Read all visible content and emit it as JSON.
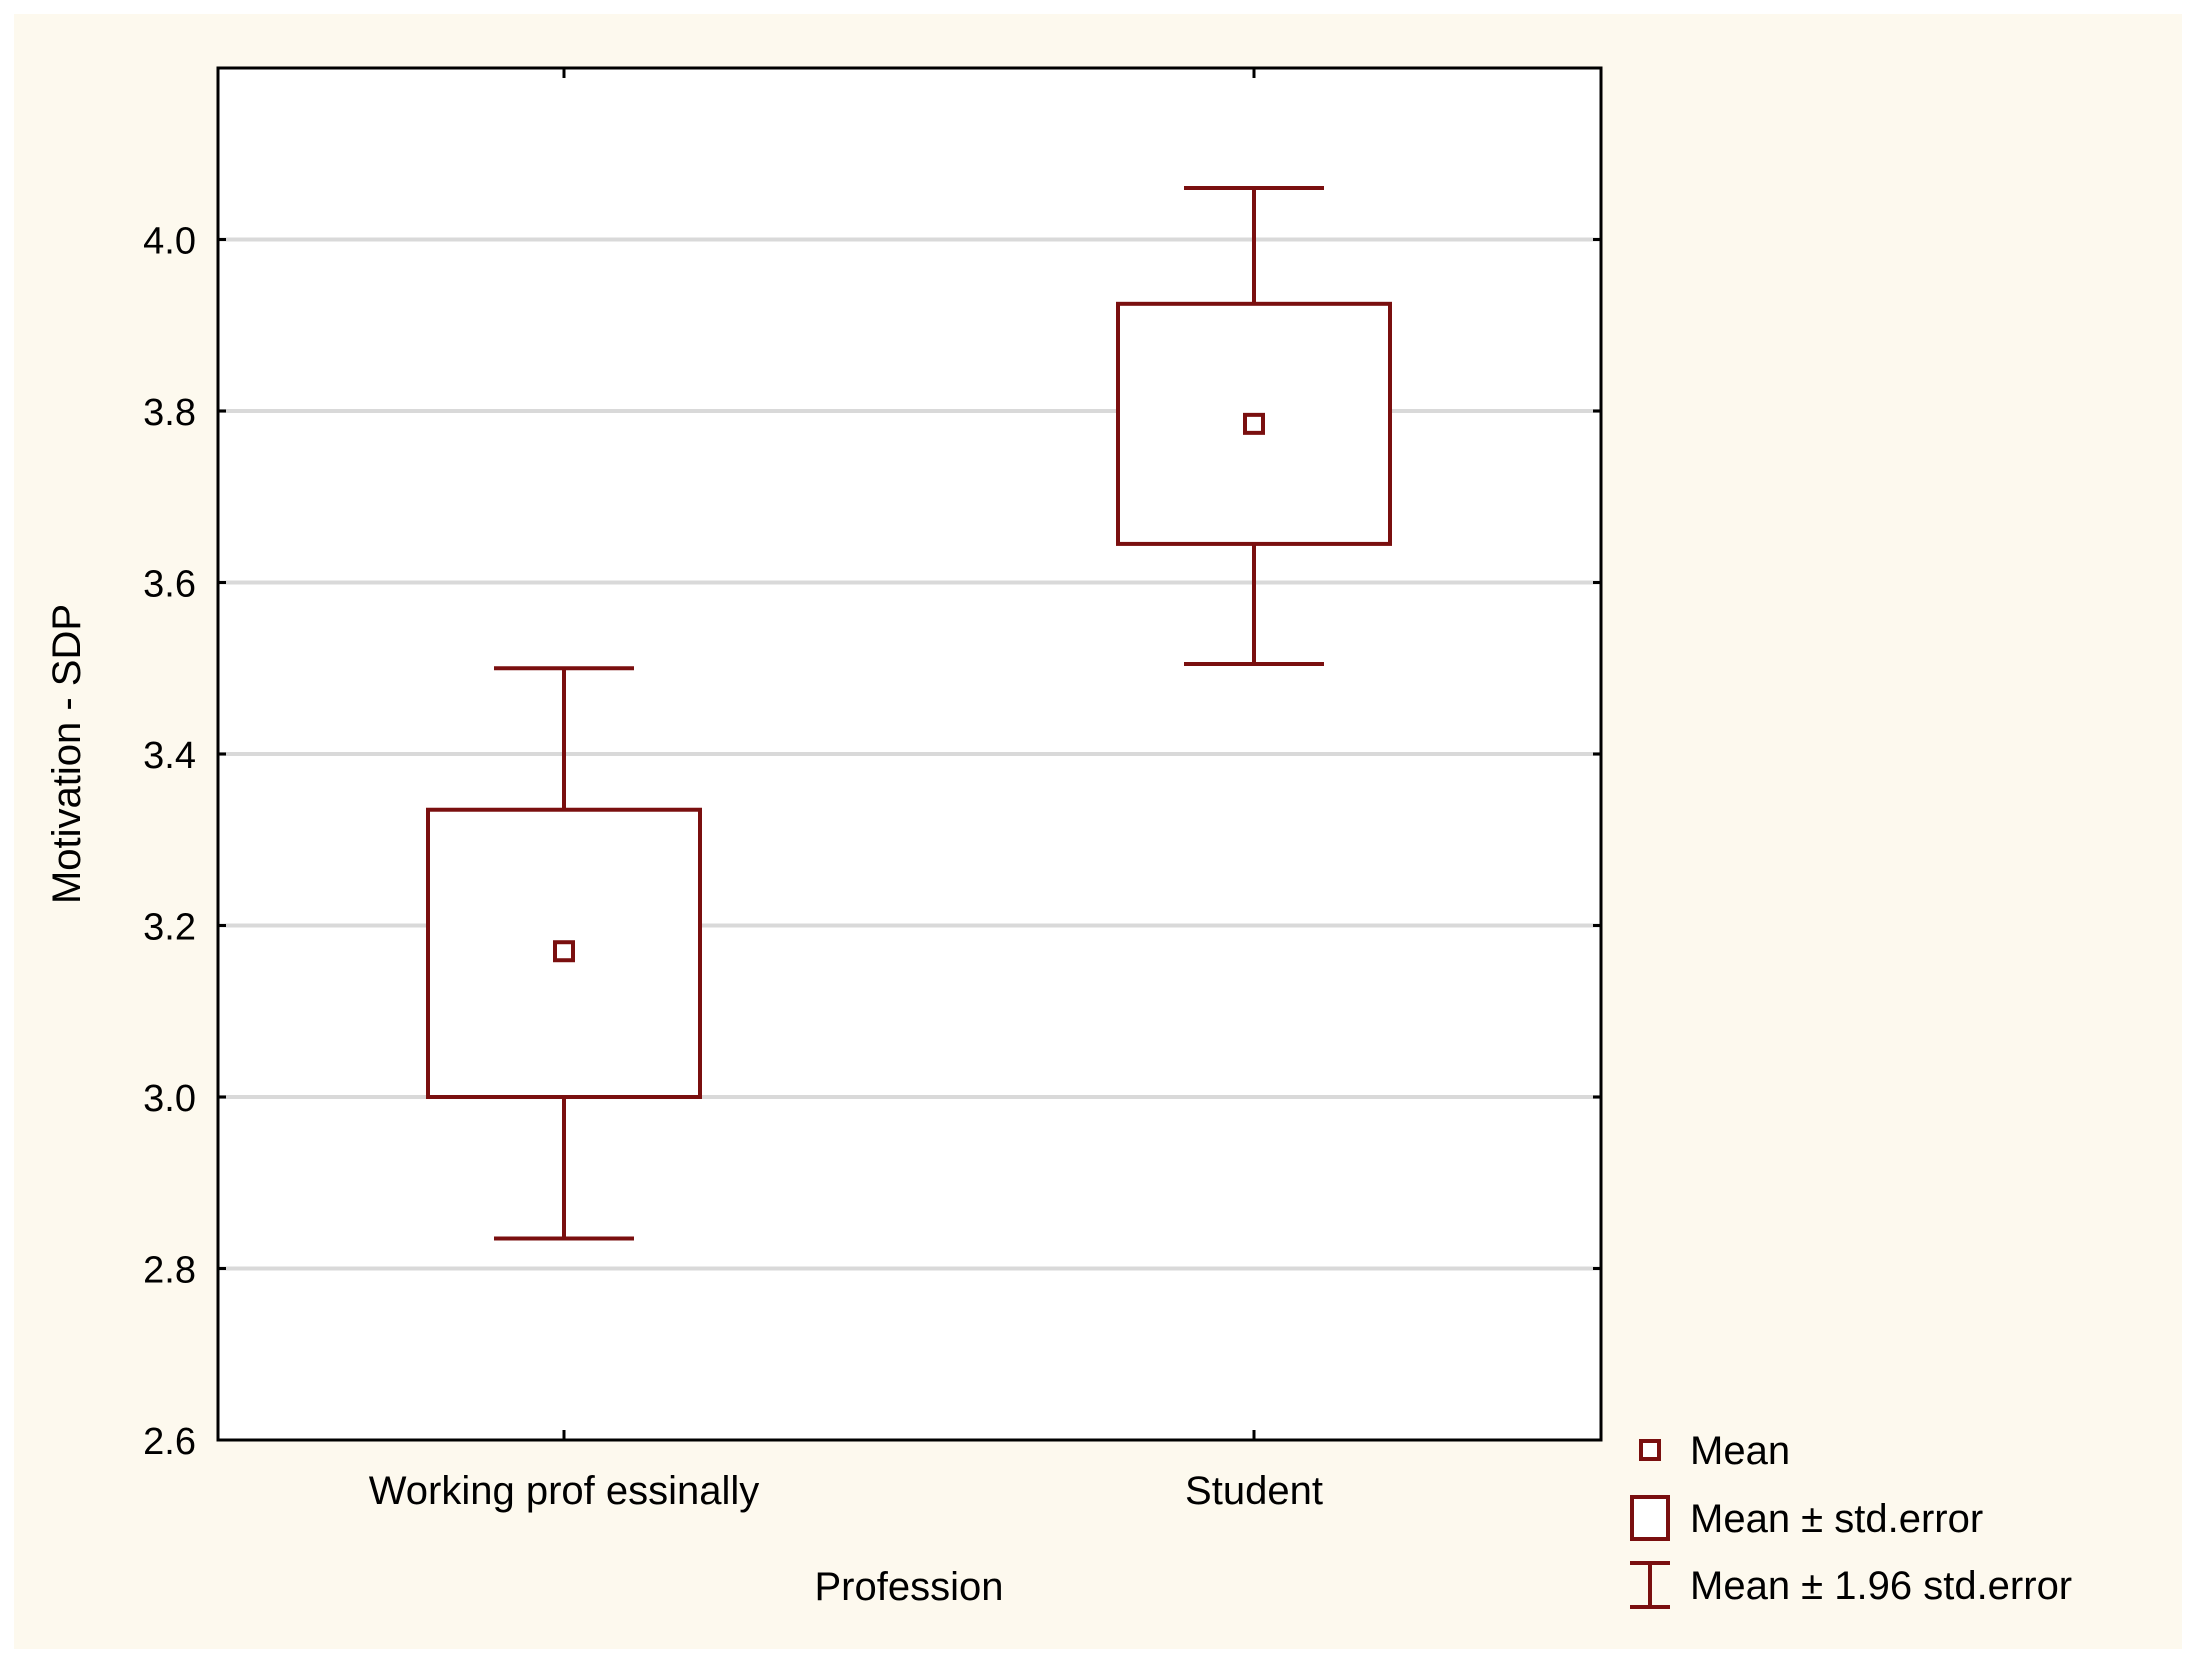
{
  "colors": {
    "page_background": "#ffffff",
    "chart_background": "#fdf9ee",
    "plot_background": "#ffffff",
    "frame": "#000000",
    "gridline": "#d9d9d9",
    "series": "#7a0f0f"
  },
  "chart_data": {
    "type": "box",
    "xlabel": "Profession",
    "ylabel": "Motivation - SDP",
    "ylim": [
      2.6,
      4.2
    ],
    "yticks": [
      2.6,
      2.8,
      3.0,
      3.2,
      3.4,
      3.6,
      3.8,
      4.0
    ],
    "ytick_labels": [
      "2.6",
      "2.8",
      "3.0",
      "3.2",
      "3.4",
      "3.6",
      "3.8",
      "4.0"
    ],
    "grid": true,
    "legend_position": "bottom-right",
    "categories": [
      "Working professinally",
      "Student"
    ],
    "tick_labels": [
      "Working prof essinally",
      "Student"
    ],
    "groups": [
      {
        "category": "Working professinally",
        "mean": 3.17,
        "se_low": 3.0,
        "se_high": 3.335,
        "ci_low": 2.835,
        "ci_high": 3.5
      },
      {
        "category": "Student",
        "mean": 3.785,
        "se_low": 3.645,
        "se_high": 3.925,
        "ci_low": 3.505,
        "ci_high": 4.06
      }
    ],
    "legend": [
      {
        "symbol": "point",
        "label": "Mean"
      },
      {
        "symbol": "box",
        "label": "Mean ± std.error"
      },
      {
        "symbol": "whisker",
        "label": "Mean ± 1.96 std.error"
      }
    ]
  }
}
